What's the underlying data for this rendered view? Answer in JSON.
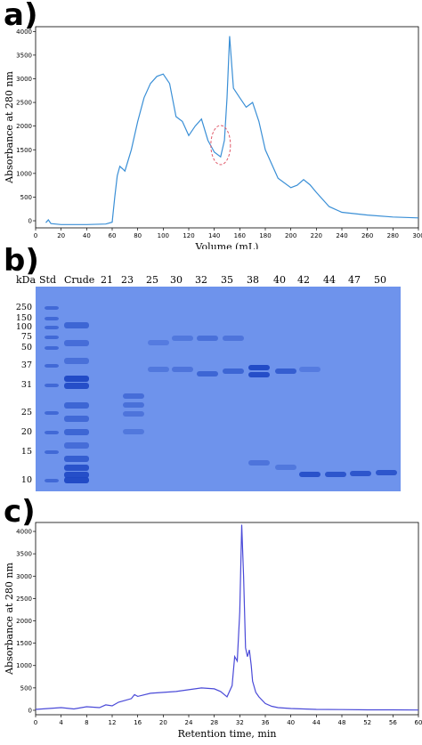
{
  "panels": {
    "a": {
      "label": "a)"
    },
    "b": {
      "label": "b)"
    },
    "c": {
      "label": "c)"
    }
  },
  "chart_data": [
    {
      "id": "a",
      "type": "line",
      "xlabel": "Volume (mL)",
      "ylabel": "Absorbance at 280 nm",
      "xlim": [
        0,
        300
      ],
      "ylim": [
        -150,
        4100
      ],
      "xticks": [
        0,
        20,
        40,
        60,
        80,
        100,
        120,
        140,
        160,
        180,
        200,
        220,
        240,
        260,
        280,
        300
      ],
      "yticks": [
        0,
        500,
        1000,
        1500,
        2000,
        2500,
        3000,
        3500,
        4000
      ],
      "color": "#3a8fd6",
      "annotation": "dashed red circle around the trough near 145 mL",
      "annotation_color": "#e05a6a",
      "series": [
        {
          "x": [
            8,
            10,
            12,
            20,
            40,
            55,
            60,
            62,
            64,
            66,
            68,
            70,
            75,
            80,
            85,
            90,
            95,
            100,
            105,
            110,
            115,
            120,
            125,
            130,
            135,
            140,
            145,
            148,
            150,
            152,
            155,
            160,
            165,
            170,
            175,
            180,
            190,
            200,
            205,
            210,
            215,
            220,
            230,
            240,
            260,
            280,
            300
          ],
          "y": [
            -40,
            20,
            -60,
            -80,
            -80,
            -70,
            -30,
            500,
            950,
            1150,
            1100,
            1050,
            1500,
            2100,
            2600,
            2900,
            3050,
            3100,
            2900,
            2200,
            2100,
            1800,
            2000,
            2150,
            1700,
            1450,
            1350,
            1700,
            2600,
            3900,
            2800,
            2600,
            2400,
            2500,
            2100,
            1500,
            900,
            700,
            750,
            870,
            760,
            600,
            300,
            180,
            120,
            80,
            60
          ]
        }
      ]
    },
    {
      "id": "c",
      "type": "line",
      "xlabel": "Retention time, min",
      "ylabel": "Absorbance at 280 nm",
      "xlim": [
        0,
        60
      ],
      "ylim": [
        -100,
        4200
      ],
      "xticks": [
        0,
        4,
        8,
        12,
        16,
        20,
        24,
        28,
        32,
        36,
        40,
        44,
        48,
        52,
        56,
        60
      ],
      "yticks": [
        0,
        500,
        1000,
        1500,
        2000,
        2500,
        3000,
        3500,
        4000
      ],
      "color": "#4a4ad8",
      "series": [
        {
          "x": [
            0,
            2,
            4,
            6,
            8,
            10,
            11,
            12,
            13,
            14,
            15,
            15.5,
            16,
            18,
            20,
            22,
            24,
            26,
            28,
            29,
            30,
            30.8,
            31.2,
            31.6,
            32,
            32.3,
            32.6,
            32.9,
            33.2,
            33.5,
            33.8,
            34,
            34.5,
            35,
            36,
            37,
            38,
            40,
            44,
            48,
            52,
            56,
            60
          ],
          "y": [
            20,
            40,
            60,
            30,
            80,
            60,
            120,
            100,
            180,
            220,
            260,
            350,
            310,
            380,
            400,
            420,
            460,
            500,
            480,
            420,
            300,
            550,
            1200,
            1100,
            2200,
            4150,
            3000,
            1400,
            1200,
            1350,
            1000,
            650,
            400,
            300,
            150,
            90,
            60,
            40,
            20,
            15,
            10,
            10,
            5
          ]
        }
      ]
    }
  ],
  "gel": {
    "header": {
      "kda": "kDa",
      "std": "Std",
      "crude": "Crude"
    },
    "lane_numbers": [
      "21",
      "23",
      "25",
      "30",
      "32",
      "35",
      "38",
      "40",
      "42",
      "44",
      "47",
      "50"
    ],
    "marker_kda": [
      "250",
      "150",
      "100",
      "75",
      "50",
      "37",
      "31",
      "25",
      "20",
      "15",
      "10"
    ],
    "background_color": "#6e93ec",
    "band_color": "#1d47c4"
  }
}
